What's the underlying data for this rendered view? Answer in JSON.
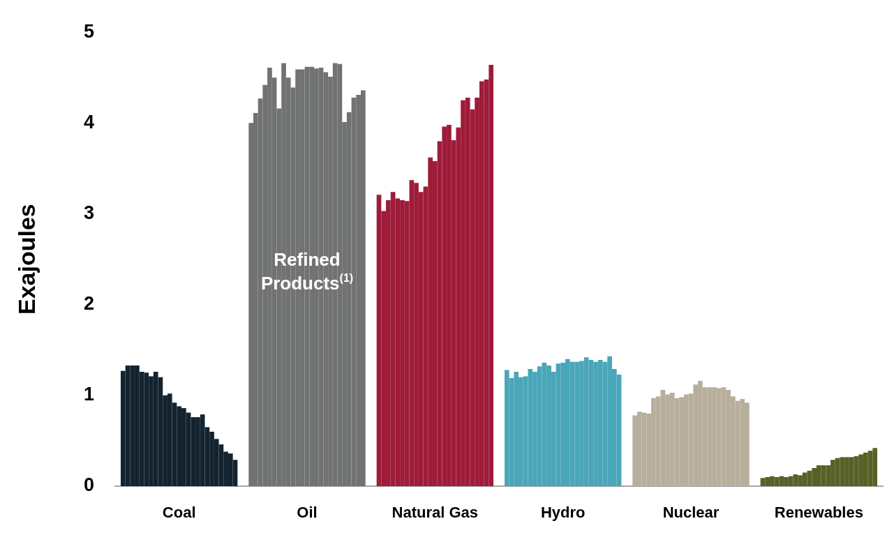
{
  "chart_data": {
    "type": "bar",
    "ylabel": "Exajoules",
    "categories": [
      "Coal",
      "Oil",
      "Natural Gas",
      "Hydro",
      "Nuclear",
      "Renewables"
    ],
    "ylim": [
      0,
      5
    ],
    "yticks": [
      0,
      1,
      2,
      3,
      4,
      5
    ],
    "grid": false,
    "legend": false,
    "annotations": [
      {
        "text": "Refined Products$^{(1)}$",
        "x": "Oil",
        "y": 2.35
      }
    ],
    "series": [
      {
        "colors": [
          "#13232f",
          "#717372",
          "#9e1c39",
          "#4aa6b9",
          "#b7af9c",
          "#566127"
        ],
        "values": [
          1.27,
          4.0,
          3.21,
          1.28,
          0.78,
          0.09
        ]
      },
      {
        "colors": [
          "#13232f",
          "#717372",
          "#9e1c39",
          "#4aa6b9",
          "#b7af9c",
          "#566127"
        ],
        "values": [
          1.33,
          4.11,
          3.03,
          1.19,
          0.82,
          0.1
        ]
      },
      {
        "colors": [
          "#13232f",
          "#717372",
          "#9e1c39",
          "#4aa6b9",
          "#b7af9c",
          "#566127"
        ],
        "values": [
          1.33,
          4.27,
          3.15,
          1.26,
          0.81,
          0.11
        ]
      },
      {
        "colors": [
          "#13232f",
          "#717372",
          "#9e1c39",
          "#4aa6b9",
          "#b7af9c",
          "#566127"
        ],
        "values": [
          1.33,
          4.42,
          3.24,
          1.2,
          0.8,
          0.1
        ]
      },
      {
        "colors": [
          "#13232f",
          "#717372",
          "#9e1c39",
          "#4aa6b9",
          "#b7af9c",
          "#566127"
        ],
        "values": [
          1.26,
          4.61,
          3.17,
          1.21,
          0.97,
          0.11
        ]
      },
      {
        "colors": [
          "#13232f",
          "#717372",
          "#9e1c39",
          "#4aa6b9",
          "#b7af9c",
          "#566127"
        ],
        "values": [
          1.25,
          4.5,
          3.15,
          1.29,
          0.99,
          0.1
        ]
      },
      {
        "colors": [
          "#13232f",
          "#717372",
          "#9e1c39",
          "#4aa6b9",
          "#b7af9c",
          "#566127"
        ],
        "values": [
          1.21,
          4.16,
          3.14,
          1.26,
          1.06,
          0.11
        ]
      },
      {
        "colors": [
          "#13232f",
          "#717372",
          "#9e1c39",
          "#4aa6b9",
          "#b7af9c",
          "#566127"
        ],
        "values": [
          1.26,
          4.66,
          3.37,
          1.32,
          1.01,
          0.13
        ]
      },
      {
        "colors": [
          "#13232f",
          "#717372",
          "#9e1c39",
          "#4aa6b9",
          "#b7af9c",
          "#566127"
        ],
        "values": [
          1.2,
          4.5,
          3.34,
          1.36,
          1.03,
          0.12
        ]
      },
      {
        "colors": [
          "#13232f",
          "#717372",
          "#9e1c39",
          "#4aa6b9",
          "#b7af9c",
          "#566127"
        ],
        "values": [
          1.0,
          4.39,
          3.24,
          1.33,
          0.97,
          0.15
        ]
      },
      {
        "colors": [
          "#13232f",
          "#717372",
          "#9e1c39",
          "#4aa6b9",
          "#b7af9c",
          "#566127"
        ],
        "values": [
          1.02,
          4.59,
          3.3,
          1.26,
          0.98,
          0.17
        ]
      },
      {
        "colors": [
          "#13232f",
          "#717372",
          "#9e1c39",
          "#4aa6b9",
          "#b7af9c",
          "#566127"
        ],
        "values": [
          0.92,
          4.59,
          3.62,
          1.35,
          1.01,
          0.2
        ]
      },
      {
        "colors": [
          "#13232f",
          "#717372",
          "#9e1c39",
          "#4aa6b9",
          "#b7af9c",
          "#566127"
        ],
        "values": [
          0.88,
          4.62,
          3.58,
          1.36,
          1.02,
          0.23
        ]
      },
      {
        "colors": [
          "#13232f",
          "#717372",
          "#9e1c39",
          "#4aa6b9",
          "#b7af9c",
          "#566127"
        ],
        "values": [
          0.86,
          4.62,
          3.8,
          1.4,
          1.12,
          0.23
        ]
      },
      {
        "colors": [
          "#13232f",
          "#717372",
          "#9e1c39",
          "#4aa6b9",
          "#b7af9c",
          "#566127"
        ],
        "values": [
          0.81,
          4.6,
          3.96,
          1.37,
          1.16,
          0.23
        ]
      },
      {
        "colors": [
          "#13232f",
          "#717372",
          "#9e1c39",
          "#4aa6b9",
          "#b7af9c",
          "#566127"
        ],
        "values": [
          0.76,
          4.61,
          3.98,
          1.37,
          1.09,
          0.29
        ]
      },
      {
        "colors": [
          "#13232f",
          "#717372",
          "#9e1c39",
          "#4aa6b9",
          "#b7af9c",
          "#566127"
        ],
        "values": [
          0.76,
          4.56,
          3.81,
          1.38,
          1.09,
          0.31
        ]
      },
      {
        "colors": [
          "#13232f",
          "#717372",
          "#9e1c39",
          "#4aa6b9",
          "#b7af9c",
          "#566127"
        ],
        "values": [
          0.79,
          4.51,
          3.95,
          1.42,
          1.09,
          0.32
        ]
      },
      {
        "colors": [
          "#13232f",
          "#717372",
          "#9e1c39",
          "#4aa6b9",
          "#b7af9c",
          "#566127"
        ],
        "values": [
          0.65,
          4.66,
          4.25,
          1.39,
          1.08,
          0.32
        ]
      },
      {
        "colors": [
          "#13232f",
          "#717372",
          "#9e1c39",
          "#4aa6b9",
          "#b7af9c",
          "#566127"
        ],
        "values": [
          0.6,
          4.65,
          4.28,
          1.37,
          1.09,
          0.32
        ]
      },
      {
        "colors": [
          "#13232f",
          "#717372",
          "#9e1c39",
          "#4aa6b9",
          "#b7af9c",
          "#566127"
        ],
        "values": [
          0.52,
          4.01,
          4.15,
          1.39,
          1.06,
          0.33
        ]
      },
      {
        "colors": [
          "#13232f",
          "#717372",
          "#9e1c39",
          "#4aa6b9",
          "#b7af9c",
          "#566127"
        ],
        "values": [
          0.46,
          4.12,
          4.28,
          1.37,
          0.99,
          0.35
        ]
      },
      {
        "colors": [
          "#13232f",
          "#717372",
          "#9e1c39",
          "#4aa6b9",
          "#b7af9c",
          "#566127"
        ],
        "values": [
          0.38,
          4.28,
          4.46,
          1.43,
          0.94,
          0.37
        ]
      },
      {
        "colors": [
          "#13232f",
          "#717372",
          "#9e1c39",
          "#4aa6b9",
          "#b7af9c",
          "#566127"
        ],
        "values": [
          0.36,
          4.31,
          4.48,
          1.29,
          0.96,
          0.39
        ]
      },
      {
        "colors": [
          "#13232f",
          "#717372",
          "#9e1c39",
          "#4aa6b9",
          "#b7af9c",
          "#566127"
        ],
        "values": [
          0.29,
          4.36,
          4.64,
          1.23,
          0.92,
          0.42
        ]
      }
    ]
  }
}
